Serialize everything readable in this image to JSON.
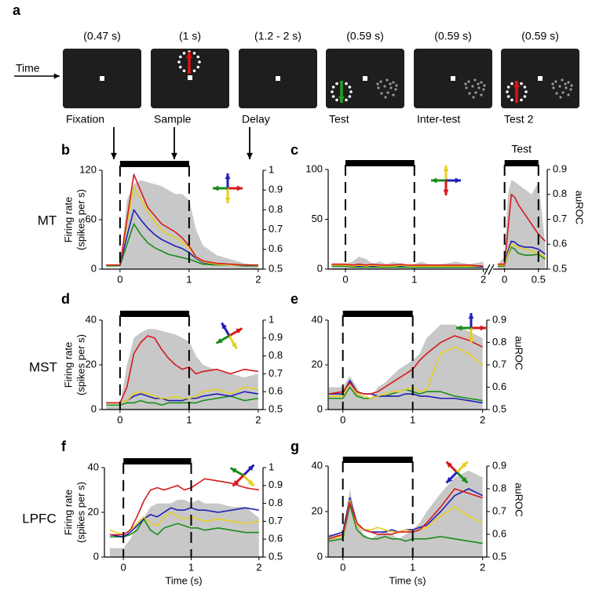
{
  "task": {
    "label": "a",
    "time_label": "Time",
    "epochs": [
      {
        "duration": "(0.47 s)",
        "name": "Fixation"
      },
      {
        "duration": "(1 s)",
        "name": "Sample"
      },
      {
        "duration": "(1.2 - 2 s)",
        "name": "Delay"
      },
      {
        "duration": "(0.59 s)",
        "name": "Test"
      },
      {
        "duration": "(0.59 s)",
        "name": "Inter-test"
      },
      {
        "duration": "(0.59 s)",
        "name": "Test 2"
      }
    ]
  },
  "chart_data": [
    {
      "type": "line",
      "panel": "b",
      "row_label": "MT",
      "ylabel": [
        "Firing rate",
        "(spikes per s)"
      ],
      "x": [
        -0.2,
        0,
        0.1,
        0.2,
        0.3,
        0.4,
        0.5,
        0.6,
        0.7,
        0.8,
        0.9,
        1,
        1.1,
        1.2,
        1.4,
        1.6,
        1.8,
        2
      ],
      "xlim": [
        -0.26,
        2.07
      ],
      "xticks": [
        0,
        1,
        2
      ],
      "ylim": [
        0,
        120
      ],
      "yticks": [
        0,
        60,
        120
      ],
      "y2lim": [
        0.5,
        1
      ],
      "y2ticks": [
        0.5,
        0.6,
        0.7,
        0.8,
        0.9,
        1
      ],
      "epoch": [
        0,
        1
      ],
      "series": [
        {
          "color": "#c8c8c8",
          "axis": "y2",
          "style": "area",
          "values": [
            0.5,
            0.5,
            0.85,
            0.93,
            0.95,
            0.94,
            0.93,
            0.92,
            0.9,
            0.88,
            0.88,
            0.85,
            0.7,
            0.62,
            0.57,
            0.55,
            0.53,
            0.52
          ]
        },
        {
          "color": "#1a8c1a",
          "values": [
            4,
            4,
            30,
            55,
            42,
            32,
            26,
            22,
            18,
            16,
            14,
            12,
            9,
            6,
            5,
            5,
            4,
            4
          ]
        },
        {
          "color": "#1f1fb4",
          "values": [
            5,
            5,
            40,
            72,
            60,
            50,
            42,
            36,
            32,
            28,
            25,
            20,
            13,
            8,
            6,
            5,
            5,
            5
          ]
        },
        {
          "color": "#e6d01e",
          "values": [
            5,
            5,
            55,
            100,
            85,
            70,
            58,
            48,
            42,
            38,
            33,
            26,
            14,
            9,
            6,
            5,
            5,
            5
          ]
        },
        {
          "color": "#d7191c",
          "values": [
            5,
            5,
            60,
            115,
            95,
            75,
            65,
            55,
            50,
            45,
            38,
            28,
            15,
            10,
            7,
            6,
            5,
            5
          ]
        }
      ]
    },
    {
      "type": "line",
      "panel": "c",
      "x": [
        -0.2,
        0,
        0.1,
        0.2,
        0.3,
        0.4,
        0.5,
        0.6,
        0.7,
        0.8,
        0.9,
        1,
        1.1,
        1.2,
        1.4,
        1.6,
        1.8,
        2
      ],
      "xlim": [
        -0.25,
        2.05
      ],
      "xticks": [
        0,
        1,
        2
      ],
      "ylim": [
        0,
        100
      ],
      "yticks": [
        0,
        50,
        100
      ],
      "y2lim": [
        0.5,
        0.9
      ],
      "epoch": [
        0,
        1
      ],
      "series": [
        {
          "color": "#c8c8c8",
          "axis": "y2",
          "style": "area",
          "values": [
            0.52,
            0.52,
            0.53,
            0.55,
            0.54,
            0.52,
            0.53,
            0.52,
            0.53,
            0.52,
            0.51,
            0.52,
            0.53,
            0.52,
            0.52,
            0.53,
            0.52,
            0.53
          ]
        },
        {
          "color": "#1a8c1a",
          "values": [
            3,
            3,
            2,
            2,
            2,
            2,
            2,
            2,
            2,
            2,
            2,
            2,
            2,
            2,
            2,
            2,
            2,
            2
          ]
        },
        {
          "color": "#1f1fb4",
          "values": [
            4,
            4,
            3,
            3,
            3,
            3,
            3,
            3,
            4,
            3,
            3,
            3,
            3,
            3,
            3,
            3,
            3,
            2
          ]
        },
        {
          "color": "#e6d01e",
          "values": [
            4,
            4,
            3,
            4,
            3,
            4,
            3,
            3,
            3,
            4,
            3,
            3,
            3,
            3,
            3,
            3,
            3,
            3
          ]
        },
        {
          "color": "#d7191c",
          "values": [
            5,
            5,
            4,
            5,
            4,
            5,
            4,
            4,
            4,
            5,
            4,
            4,
            4,
            4,
            4,
            4,
            4,
            3
          ]
        }
      ]
    },
    {
      "type": "line",
      "title": "Test",
      "y2label": "auROC",
      "x": [
        -0.1,
        0,
        0.05,
        0.1,
        0.15,
        0.2,
        0.3,
        0.4,
        0.5,
        0.6
      ],
      "xlim": [
        -0.17,
        0.63
      ],
      "xticks": [
        0,
        0.5
      ],
      "ylim": [
        0,
        100
      ],
      "y2lim": [
        0.5,
        0.9
      ],
      "y2ticks": [
        0.5,
        0.6,
        0.7,
        0.8,
        0.9
      ],
      "epoch": [
        0,
        0.5
      ],
      "series": [
        {
          "color": "#c8c8c8",
          "axis": "y2",
          "style": "area",
          "values": [
            0.52,
            0.55,
            0.8,
            0.86,
            0.85,
            0.84,
            0.82,
            0.8,
            0.85,
            0.6
          ]
        },
        {
          "color": "#1a8c1a",
          "values": [
            3,
            3,
            14,
            22,
            20,
            16,
            14,
            14,
            15,
            10
          ]
        },
        {
          "color": "#1f1fb4",
          "values": [
            4,
            4,
            18,
            28,
            27,
            24,
            22,
            22,
            20,
            15
          ]
        },
        {
          "color": "#e6d01e",
          "values": [
            4,
            4,
            15,
            25,
            24,
            22,
            20,
            18,
            16,
            12
          ]
        },
        {
          "color": "#d7191c",
          "values": [
            5,
            5,
            40,
            75,
            72,
            65,
            55,
            45,
            35,
            28
          ]
        }
      ]
    },
    {
      "type": "line",
      "panel": "d",
      "row_label": "MST",
      "ylabel": [
        "Firing rate",
        "(spikes per s)"
      ],
      "x": [
        -0.2,
        0,
        0.1,
        0.2,
        0.3,
        0.4,
        0.5,
        0.6,
        0.7,
        0.8,
        0.9,
        1,
        1.1,
        1.2,
        1.4,
        1.6,
        1.8,
        2
      ],
      "xlim": [
        -0.26,
        2.07
      ],
      "xticks": [
        0,
        1,
        2
      ],
      "ylim": [
        0,
        40
      ],
      "yticks": [
        0,
        20,
        40
      ],
      "y2lim": [
        0.5,
        1
      ],
      "y2ticks": [
        0.5,
        0.6,
        0.7,
        0.8,
        0.9,
        1
      ],
      "epoch": [
        0,
        1
      ],
      "series": [
        {
          "color": "#c8c8c8",
          "axis": "y2",
          "style": "area",
          "values": [
            0.52,
            0.52,
            0.75,
            0.9,
            0.93,
            0.95,
            0.95,
            0.94,
            0.93,
            0.92,
            0.9,
            0.88,
            0.8,
            0.75,
            0.72,
            0.7,
            0.68,
            0.7
          ]
        },
        {
          "color": "#1a8c1a",
          "values": [
            2,
            2,
            3,
            3,
            4,
            3,
            3,
            2,
            3,
            3,
            3,
            3,
            3,
            4,
            5,
            6,
            4,
            5
          ]
        },
        {
          "color": "#1f1fb4",
          "values": [
            3,
            3,
            4,
            6,
            7,
            6,
            5,
            5,
            4,
            4,
            4,
            5,
            5,
            6,
            7,
            6,
            8,
            7
          ]
        },
        {
          "color": "#e6d01e",
          "values": [
            3,
            3,
            4,
            7,
            8,
            7,
            6,
            5,
            5,
            6,
            5,
            5,
            6,
            8,
            9,
            7,
            10,
            9
          ]
        },
        {
          "color": "#d7191c",
          "values": [
            3,
            3,
            10,
            25,
            30,
            33,
            32,
            27,
            23,
            20,
            18,
            19,
            16,
            17,
            18,
            16,
            18,
            17
          ]
        }
      ]
    },
    {
      "type": "line",
      "panel": "e",
      "y2label": "auROC",
      "x": [
        -0.2,
        0,
        0.1,
        0.2,
        0.3,
        0.4,
        0.5,
        0.6,
        0.7,
        0.8,
        0.9,
        1,
        1.1,
        1.2,
        1.4,
        1.6,
        1.8,
        2
      ],
      "xlim": [
        -0.21,
        2.06
      ],
      "xticks": [
        0,
        1,
        2
      ],
      "ylim": [
        0,
        40
      ],
      "yticks": [
        0,
        20,
        40
      ],
      "y2lim": [
        0.5,
        0.9
      ],
      "y2ticks": [
        0.5,
        0.6,
        0.7,
        0.8,
        0.9
      ],
      "epoch": [
        0,
        1
      ],
      "series": [
        {
          "color": "#c8c8c8",
          "axis": "y2",
          "style": "area",
          "values": [
            0.6,
            0.6,
            0.65,
            0.6,
            0.55,
            0.55,
            0.6,
            0.62,
            0.65,
            0.68,
            0.7,
            0.72,
            0.75,
            0.82,
            0.88,
            0.88,
            0.85,
            0.82
          ]
        },
        {
          "color": "#1a8c1a",
          "values": [
            5,
            5,
            10,
            6,
            5,
            5,
            6,
            6,
            7,
            8,
            9,
            8,
            7,
            8,
            8,
            6,
            5,
            4
          ]
        },
        {
          "color": "#1f1fb4",
          "values": [
            7,
            7,
            13,
            8,
            7,
            7,
            6,
            6,
            6,
            6,
            7,
            7,
            6,
            6,
            5,
            5,
            4,
            3
          ]
        },
        {
          "color": "#e6d01e",
          "values": [
            6,
            6,
            12,
            7,
            6,
            5,
            6,
            7,
            8,
            8,
            9,
            10,
            8,
            9,
            25,
            28,
            25,
            20
          ]
        },
        {
          "color": "#d7191c",
          "values": [
            7,
            8,
            12,
            8,
            7,
            7,
            8,
            10,
            12,
            14,
            16,
            18,
            22,
            25,
            30,
            33,
            31,
            28
          ]
        }
      ]
    },
    {
      "type": "line",
      "panel": "f",
      "row_label": "LPFC",
      "ylabel": [
        "Firing rate",
        "(spikes per s)"
      ],
      "xlabel": "Time (s)",
      "x": [
        -0.2,
        0,
        0.1,
        0.2,
        0.3,
        0.4,
        0.5,
        0.6,
        0.7,
        0.8,
        0.9,
        1,
        1.1,
        1.2,
        1.4,
        1.6,
        1.8,
        2
      ],
      "xlim": [
        -0.28,
        2.06
      ],
      "xticks": [
        0,
        1,
        2
      ],
      "ylim": [
        0,
        40
      ],
      "yticks": [
        0,
        20,
        40
      ],
      "y2lim": [
        0.5,
        1
      ],
      "y2ticks": [
        0.5,
        0.6,
        0.7,
        0.8,
        0.9,
        1
      ],
      "epoch": [
        0,
        1
      ],
      "series": [
        {
          "color": "#c8c8c8",
          "axis": "y2",
          "style": "area",
          "values": [
            0.55,
            0.55,
            0.6,
            0.68,
            0.72,
            0.78,
            0.8,
            0.8,
            0.8,
            0.82,
            0.82,
            0.8,
            0.82,
            0.8,
            0.8,
            0.78,
            0.78,
            0.72
          ]
        },
        {
          "color": "#1a8c1a",
          "values": [
            9,
            9,
            10,
            12,
            17,
            12,
            10,
            13,
            14,
            15,
            14,
            13,
            13,
            12,
            13,
            12,
            11,
            11
          ]
        },
        {
          "color": "#1f1fb4",
          "values": [
            10,
            9,
            11,
            14,
            17,
            19,
            18,
            20,
            22,
            21,
            21,
            22,
            21,
            21,
            20,
            21,
            22,
            21
          ]
        },
        {
          "color": "#e6d01e",
          "values": [
            12,
            10,
            12,
            15,
            18,
            15,
            14,
            18,
            20,
            18,
            17,
            18,
            17,
            16,
            17,
            16,
            15,
            16
          ]
        },
        {
          "color": "#d7191c",
          "values": [
            10,
            10,
            12,
            18,
            25,
            30,
            31,
            30,
            31,
            32,
            30,
            31,
            33,
            35,
            34,
            33,
            31,
            30
          ]
        }
      ]
    },
    {
      "type": "line",
      "panel": "g",
      "y2label": "auROC",
      "xlabel": "Time (s)",
      "x": [
        -0.2,
        0,
        0.1,
        0.2,
        0.3,
        0.4,
        0.5,
        0.6,
        0.7,
        0.8,
        0.9,
        1,
        1.1,
        1.2,
        1.4,
        1.6,
        1.8,
        2
      ],
      "xlim": [
        -0.21,
        2.06
      ],
      "xticks": [
        0,
        1,
        2
      ],
      "ylim": [
        0,
        40
      ],
      "yticks": [
        0,
        20,
        40
      ],
      "y2lim": [
        0.5,
        0.9
      ],
      "y2ticks": [
        0.5,
        0.6,
        0.7,
        0.8,
        0.9
      ],
      "epoch": [
        0,
        1
      ],
      "series": [
        {
          "color": "#c8c8c8",
          "axis": "y2",
          "style": "area",
          "values": [
            0.6,
            0.6,
            0.8,
            0.65,
            0.6,
            0.58,
            0.6,
            0.62,
            0.6,
            0.58,
            0.6,
            0.62,
            0.65,
            0.7,
            0.78,
            0.85,
            0.88,
            0.85
          ]
        },
        {
          "color": "#1a8c1a",
          "values": [
            7,
            8,
            23,
            12,
            9,
            8,
            8,
            9,
            8,
            8,
            7,
            8,
            8,
            8,
            9,
            8,
            7,
            6
          ]
        },
        {
          "color": "#1f1fb4",
          "values": [
            9,
            11,
            26,
            15,
            12,
            11,
            11,
            11,
            12,
            11,
            12,
            12,
            13,
            14,
            20,
            27,
            30,
            27
          ]
        },
        {
          "color": "#e6d01e",
          "values": [
            8,
            9,
            25,
            14,
            12,
            12,
            13,
            12,
            11,
            11,
            12,
            11,
            12,
            13,
            18,
            22,
            18,
            15
          ]
        },
        {
          "color": "#d7191c",
          "values": [
            8,
            10,
            24,
            15,
            12,
            11,
            10,
            10,
            10,
            11,
            11,
            11,
            12,
            15,
            22,
            30,
            28,
            26
          ]
        }
      ]
    }
  ]
}
